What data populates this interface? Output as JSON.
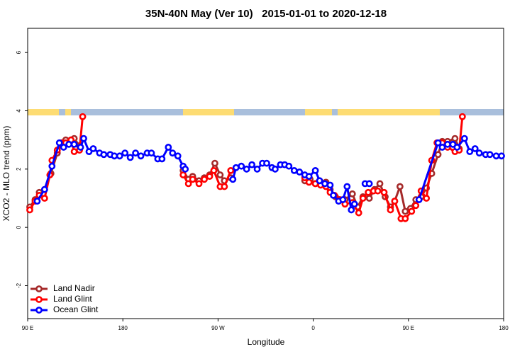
{
  "chart_data": {
    "type": "line",
    "title": "35N-40N May (Ver 10)   2015-01-01 to 2020-12-18",
    "x_label": "Longitude",
    "y_label": "XCO2 - MLO trend (ppm)",
    "xlim": [
      90,
      540
    ],
    "xticks": [
      {
        "value": 90,
        "label": "90 E"
      },
      180,
      {
        "value": 270,
        "label": "90 W"
      },
      {
        "value": 360,
        "label": "0"
      },
      {
        "value": 450,
        "label": "90 E"
      },
      {
        "value": 540,
        "label": "180"
      }
    ],
    "ylim": [
      -3.13,
      6.83
    ],
    "yticks": [
      -2,
      0,
      2,
      4,
      6
    ],
    "legend": "bottom-left",
    "series": [
      {
        "name": "Land Nadir",
        "color": "#a52a2a",
        "x": [
          92,
          97,
          101,
          106,
          112,
          118,
          122,
          126,
          131,
          134,
          139,
          null,
          237,
          242,
          246,
          252,
          257,
          262,
          267,
          272,
          276,
          282,
          null,
          352,
          357,
          362,
          366,
          372,
          376,
          381,
          385,
          390,
          397,
          402,
          407,
          413,
          418,
          423,
          428,
          433,
          437,
          442,
          447,
          452,
          457,
          462,
          467,
          472,
          478,
          482,
          487,
          494,
          498
        ],
        "values": [
          0.7,
          0.95,
          1.2,
          1.3,
          1.85,
          2.55,
          2.9,
          3.0,
          3.0,
          3.05,
          2.8,
          null,
          1.95,
          1.65,
          1.75,
          1.6,
          1.7,
          1.8,
          2.2,
          1.8,
          1.6,
          1.7,
          null,
          1.6,
          1.65,
          1.5,
          1.6,
          1.55,
          1.3,
          1.05,
          0.95,
          0.95,
          1.15,
          0.7,
          1.05,
          1.0,
          1.3,
          1.5,
          1.05,
          0.7,
          0.9,
          1.4,
          0.55,
          0.65,
          0.95,
          1.05,
          1.35,
          1.85,
          2.5,
          2.95,
          2.95,
          3.05,
          2.7
        ]
      },
      {
        "name": "Land Glint",
        "color": "#ff0000",
        "x": [
          92,
          97,
          101,
          106,
          111,
          113,
          118,
          122,
          126,
          131,
          134,
          139,
          142,
          null,
          237,
          242,
          246,
          252,
          257,
          262,
          266,
          272,
          276,
          282,
          null,
          352,
          356,
          362,
          367,
          372,
          376,
          380,
          385,
          390,
          397,
          403,
          407,
          412,
          417,
          421,
          427,
          433,
          437,
          443,
          447,
          453,
          457,
          462,
          467,
          472,
          477,
          482,
          487,
          494,
          498,
          501
        ],
        "values": [
          0.6,
          0.9,
          1.1,
          1.0,
          1.8,
          2.3,
          2.65,
          2.9,
          2.9,
          3.0,
          2.6,
          2.65,
          3.8,
          null,
          1.8,
          1.5,
          1.65,
          1.5,
          1.65,
          1.75,
          1.95,
          1.4,
          1.4,
          1.95,
          null,
          1.7,
          1.55,
          1.5,
          1.45,
          1.4,
          1.2,
          1.1,
          0.95,
          0.8,
          0.85,
          0.5,
          1.0,
          1.2,
          1.25,
          1.25,
          1.2,
          0.6,
          0.9,
          0.3,
          0.3,
          0.55,
          0.75,
          1.25,
          1.0,
          2.3,
          2.9,
          2.9,
          2.75,
          2.6,
          2.65,
          3.8
        ]
      },
      {
        "name": "Ocean Glint",
        "color": "#0000ff",
        "x": [
          99,
          106,
          113,
          120,
          124,
          129,
          134,
          140,
          143,
          148,
          152,
          158,
          162,
          168,
          172,
          177,
          182,
          187,
          192,
          197,
          203,
          207,
          213,
          217,
          223,
          227,
          232,
          237,
          239,
          null,
          284,
          287,
          292,
          297,
          302,
          307,
          312,
          316,
          321,
          324,
          329,
          333,
          337,
          342,
          347,
          352,
          356,
          362,
          366,
          371,
          376,
          379,
          384,
          388,
          392,
          396,
          399,
          null,
          409,
          413,
          null,
          460,
          478,
          482,
          487,
          492,
          496,
          503,
          508,
          513,
          517,
          523,
          527,
          533,
          538
        ],
        "values": [
          0.9,
          1.3,
          2.1,
          2.9,
          2.75,
          2.85,
          2.85,
          2.75,
          3.05,
          2.6,
          2.7,
          2.55,
          2.5,
          2.5,
          2.45,
          2.45,
          2.55,
          2.4,
          2.55,
          2.45,
          2.55,
          2.55,
          2.35,
          2.35,
          2.75,
          2.55,
          2.45,
          2.1,
          2.0,
          null,
          1.65,
          2.05,
          2.1,
          2.0,
          2.15,
          2.0,
          2.2,
          2.2,
          2.05,
          2.0,
          2.15,
          2.15,
          2.1,
          1.95,
          1.9,
          1.8,
          1.75,
          1.95,
          1.6,
          1.5,
          1.45,
          1.1,
          0.9,
          0.95,
          1.4,
          0.6,
          0.8,
          null,
          1.5,
          1.5,
          null,
          0.95,
          2.9,
          2.75,
          2.85,
          2.85,
          2.75,
          3.05,
          2.6,
          2.7,
          2.55,
          2.5,
          2.5,
          2.45,
          2.45
        ]
      }
    ]
  }
}
